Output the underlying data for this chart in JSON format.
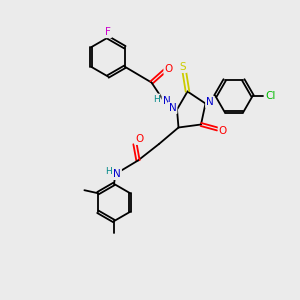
{
  "background_color": "#ebebeb",
  "atom_colors": {
    "C": "#000000",
    "N": "#0000cc",
    "O": "#ff0000",
    "S": "#cccc00",
    "F": "#cc00cc",
    "Cl": "#00bb00",
    "H": "#008888"
  },
  "figsize": [
    3.0,
    3.0
  ],
  "dpi": 100,
  "lw": 1.3,
  "ring_r": 0.62,
  "font_size": 7.5
}
